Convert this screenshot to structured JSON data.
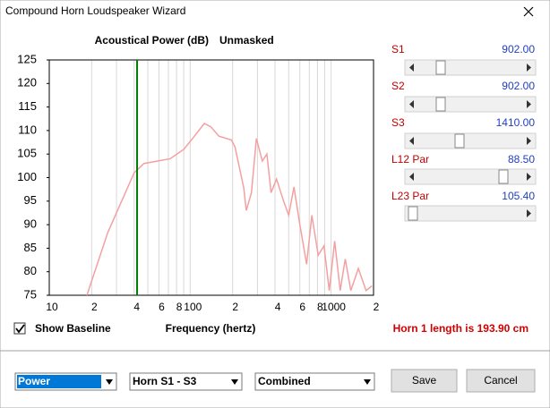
{
  "window": {
    "title": "Compound Horn Loudspeaker Wizard"
  },
  "chart": {
    "type": "line",
    "title": "Acoustical Power (dB)",
    "mode": "Unmasked",
    "x_label": "Frequency (hertz)",
    "log_x": true,
    "grid": true,
    "color": "#f4a0a0",
    "xlim": [
      10,
      2000
    ],
    "ylim": [
      75,
      125
    ],
    "yticks": [
      75,
      80,
      85,
      90,
      95,
      100,
      105,
      110,
      115,
      120,
      125
    ],
    "xticks": [
      {
        "value": 10,
        "label": "10"
      },
      {
        "value": 20,
        "label": "2"
      },
      {
        "value": 40,
        "label": "4"
      },
      {
        "value": 60,
        "label": "6"
      },
      {
        "value": 80,
        "label": "8"
      },
      {
        "value": 100,
        "label": "100"
      },
      {
        "value": 200,
        "label": "2"
      },
      {
        "value": 400,
        "label": "4"
      },
      {
        "value": 600,
        "label": "6"
      },
      {
        "value": 800,
        "label": "8"
      },
      {
        "value": 1000,
        "label": "1000"
      },
      {
        "value": 2000,
        "label": "2"
      }
    ],
    "minor_xticks": [
      30,
      50,
      70,
      90,
      300,
      500,
      700,
      900
    ],
    "x": [
      18.5,
      26,
      40,
      47,
      58,
      72,
      90,
      104,
      126,
      140,
      160,
      196,
      208,
      240,
      250,
      272,
      295,
      325,
      350,
      375,
      410,
      460,
      500,
      545,
      600,
      670,
      730,
      810,
      890,
      970,
      1060,
      1160,
      1260,
      1380,
      1560,
      1770,
      1950
    ],
    "values": [
      75,
      88.3,
      101,
      103,
      103.5,
      104,
      106,
      108.3,
      111.5,
      110.8,
      108.8,
      108,
      106.5,
      97.8,
      93,
      96.8,
      108.3,
      103.5,
      105,
      96.8,
      99.7,
      95,
      92,
      98,
      90,
      81.6,
      92,
      83.5,
      85.5,
      76,
      86.5,
      76,
      82.7,
      76,
      80.7,
      76,
      77
    ],
    "marker_x": 42,
    "marker_color": "#007a00"
  },
  "checkbox": {
    "label": "Show Baseline"
  },
  "horn_length": "Horn 1 length is 193.90 cm",
  "sliders": [
    {
      "name": "S1",
      "value": "902.00"
    },
    {
      "name": "S2",
      "value": "902.00"
    },
    {
      "name": "S3",
      "value": "1410.00"
    },
    {
      "name": "L12  Par",
      "value": "88.50"
    },
    {
      "name": "L23  Par",
      "value": "105.40"
    }
  ],
  "dropdowns": [
    "Power",
    "Horn S1 - S3",
    "Combined"
  ],
  "buttons": [
    "Save",
    "Cancel"
  ]
}
